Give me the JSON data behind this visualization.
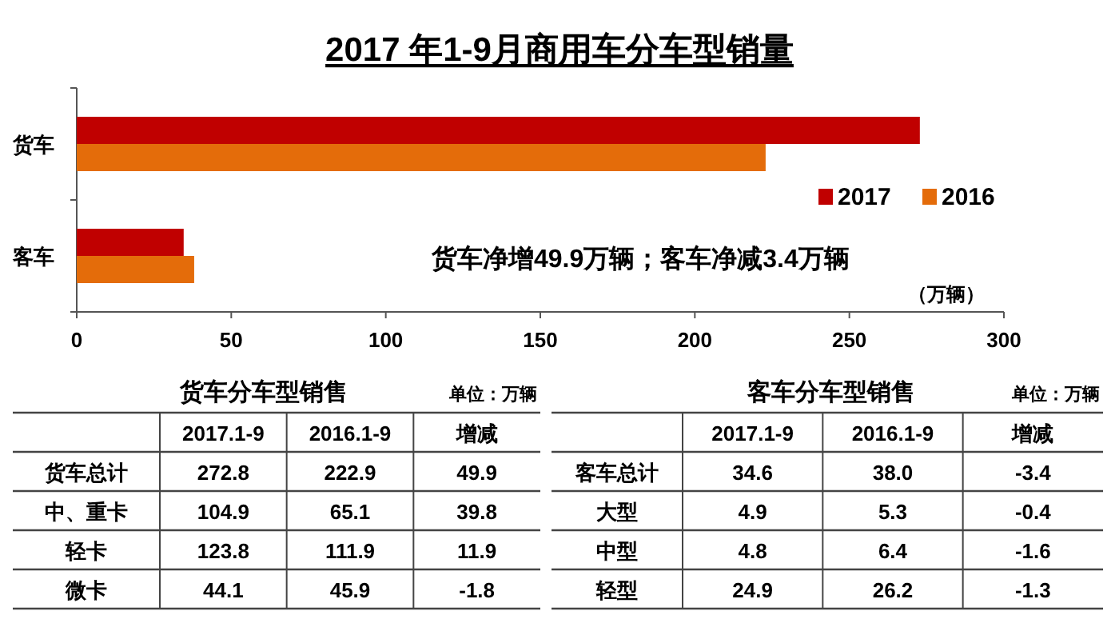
{
  "chart_data": [
    {
      "type": "bar",
      "orientation": "horizontal",
      "title": "2017 年1-9月商用车分车型销量",
      "categories": [
        "货车",
        "客车"
      ],
      "series": [
        {
          "name": "2017",
          "color": "#c00000",
          "values": [
            272.8,
            34.6
          ]
        },
        {
          "name": "2016",
          "color": "#e46c0a",
          "values": [
            222.9,
            38.0
          ]
        }
      ],
      "xlim": [
        0,
        300
      ],
      "xticks": [
        0,
        50,
        100,
        150,
        200,
        250,
        300
      ],
      "xlabel": "（万辆）",
      "legend": "right",
      "annotations": [
        "货车净增49.9万辆；客车净减3.4万辆"
      ]
    },
    {
      "type": "other",
      "title": "货车分车型销售",
      "subtitle": "单位：万辆",
      "categories": [
        "2017.1-9",
        "2016.1-9",
        "增减"
      ],
      "y_categories": [
        "货车总计",
        "中、重卡",
        "轻卡",
        "微卡"
      ],
      "cell_labels": [
        [
          "272.8",
          "222.9",
          "49.9"
        ],
        [
          "104.9",
          "65.1",
          "39.8"
        ],
        [
          "123.8",
          "111.9",
          "11.9"
        ],
        [
          "44.1",
          "45.9",
          "-1.8"
        ]
      ]
    },
    {
      "type": "other",
      "title": "客车分车型销售",
      "subtitle": "单位：万辆",
      "categories": [
        "2017.1-9",
        "2016.1-9",
        "增减"
      ],
      "y_categories": [
        "客车总计",
        "大型",
        "中型",
        "轻型"
      ],
      "cell_labels": [
        [
          "34.6",
          "38.0",
          "-3.4"
        ],
        [
          "4.9",
          "5.3",
          "-0.4"
        ],
        [
          "4.8",
          "6.4",
          "-1.6"
        ],
        [
          "24.9",
          "26.2",
          "-1.3"
        ]
      ]
    }
  ]
}
